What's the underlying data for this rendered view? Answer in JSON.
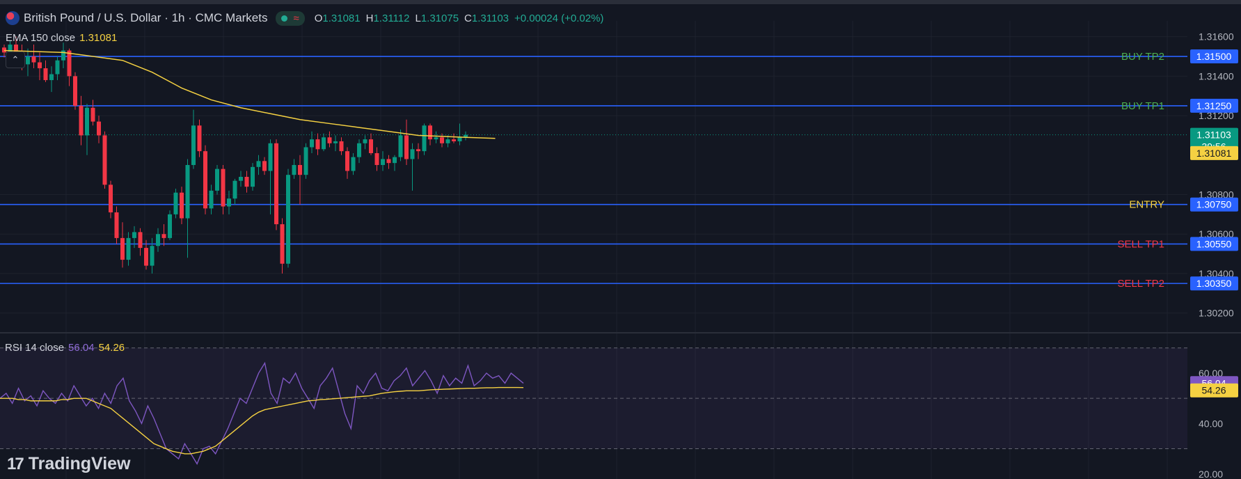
{
  "header": {
    "title": "British Pound / U.S. Dollar · 1h · CMC Markets",
    "wave_symbol": "≈",
    "ohlc": [
      {
        "key": "O",
        "value": "1.31081"
      },
      {
        "key": "H",
        "value": "1.31112"
      },
      {
        "key": "L",
        "value": "1.31075"
      },
      {
        "key": "C",
        "value": "1.31103"
      }
    ],
    "change": "+0.00024 (+0.02%)"
  },
  "ema_legend": {
    "label": "EMA 150 close",
    "value": "1.31081"
  },
  "rsi_legend": {
    "label": "RSI 14 close",
    "value_rsi": "56.04",
    "value_ma": "54.26"
  },
  "collapse_symbol": "⌃",
  "logo": {
    "mark": "17",
    "text": "TradingView"
  },
  "colors": {
    "background": "#131722",
    "grid": "#1e222d",
    "level_line": "#2962ff",
    "up": "#089981",
    "down": "#f23645",
    "ema": "#f5d142",
    "rsi": "#7e57c2",
    "buy_label": "#4caf50",
    "sell_label": "#f23645",
    "entry_label": "#f5d142"
  },
  "chart_data": [
    {
      "type": "candlestick",
      "instrument": "British Pound / U.S. Dollar",
      "timeframe": "1h",
      "ylim": [
        1.301,
        1.3168
      ],
      "yticks": [
        "1.31600",
        "1.31400",
        "1.31200",
        "1.30800",
        "1.30600",
        "1.30400",
        "1.30200"
      ],
      "ytick_values": [
        1.316,
        1.314,
        1.312,
        1.308,
        1.306,
        1.304,
        1.302
      ],
      "levels": [
        {
          "label": "BUY TP2",
          "price": 1.315,
          "price_label": "1.31500",
          "kind": "buy"
        },
        {
          "label": "BUY TP1",
          "price": 1.3125,
          "price_label": "1.31250",
          "kind": "buy"
        },
        {
          "label": "ENTRY",
          "price": 1.3075,
          "price_label": "1.30750",
          "kind": "entry"
        },
        {
          "label": "SELL TP1",
          "price": 1.3055,
          "price_label": "1.30550",
          "kind": "sell"
        },
        {
          "label": "SELL TP2",
          "price": 1.3035,
          "price_label": "1.30350",
          "kind": "sell"
        }
      ],
      "last_price": {
        "price": 1.31103,
        "label": "1.31103",
        "countdown": "39:56"
      },
      "ema": {
        "name": "EMA 150 close",
        "last": 1.31081,
        "label": "1.31081",
        "points": [
          [
            0,
            1.3153
          ],
          [
            10,
            1.3152
          ],
          [
            20,
            1.3148
          ],
          [
            25,
            1.3142
          ],
          [
            30,
            1.3134
          ],
          [
            35,
            1.3128
          ],
          [
            40,
            1.3124
          ],
          [
            45,
            1.3121
          ],
          [
            50,
            1.3118
          ],
          [
            55,
            1.3116
          ],
          [
            60,
            1.3114
          ],
          [
            65,
            1.3112
          ],
          [
            70,
            1.311
          ],
          [
            78,
            1.3109
          ],
          [
            83,
            1.31085
          ]
        ]
      },
      "candles": [
        [
          1.31545,
          1.3156,
          1.31495,
          1.3152
        ],
        [
          1.3152,
          1.3158,
          1.3148,
          1.3156
        ],
        [
          1.3156,
          1.316,
          1.315,
          1.3151
        ],
        [
          1.3151,
          1.3156,
          1.3143,
          1.3146
        ],
        [
          1.3146,
          1.3154,
          1.314,
          1.315
        ],
        [
          1.315,
          1.3156,
          1.3144,
          1.3147
        ],
        [
          1.3147,
          1.3152,
          1.3138,
          1.3144
        ],
        [
          1.3144,
          1.3148,
          1.3137,
          1.3138
        ],
        [
          1.3138,
          1.3145,
          1.3132,
          1.3141
        ],
        [
          1.3141,
          1.315,
          1.3138,
          1.3148
        ],
        [
          1.3148,
          1.3157,
          1.3144,
          1.3153
        ],
        [
          1.3153,
          1.3154,
          1.3135,
          1.314
        ],
        [
          1.314,
          1.3142,
          1.3123,
          1.3125
        ],
        [
          1.3125,
          1.313,
          1.3105,
          1.311
        ],
        [
          1.311,
          1.3126,
          1.31,
          1.3124
        ],
        [
          1.3124,
          1.3128,
          1.3115,
          1.3117
        ],
        [
          1.3117,
          1.312,
          1.3106,
          1.311
        ],
        [
          1.311,
          1.3112,
          1.3083,
          1.3085
        ],
        [
          1.3085,
          1.3087,
          1.3068,
          1.3071
        ],
        [
          1.3071,
          1.3074,
          1.3055,
          1.3058
        ],
        [
          1.3058,
          1.3066,
          1.3043,
          1.3047
        ],
        [
          1.3047,
          1.3061,
          1.3044,
          1.3058
        ],
        [
          1.3058,
          1.3064,
          1.3053,
          1.3061
        ],
        [
          1.3061,
          1.3063,
          1.3049,
          1.3053
        ],
        [
          1.3053,
          1.3057,
          1.3042,
          1.3044
        ],
        [
          1.3044,
          1.3058,
          1.304,
          1.3054
        ],
        [
          1.3054,
          1.3063,
          1.3051,
          1.306
        ],
        [
          1.306,
          1.3065,
          1.3054,
          1.3058
        ],
        [
          1.3058,
          1.3072,
          1.3057,
          1.307
        ],
        [
          1.307,
          1.3083,
          1.3068,
          1.3081
        ],
        [
          1.3081,
          1.3084,
          1.3065,
          1.3068
        ],
        [
          1.3068,
          1.3098,
          1.3048,
          1.3095
        ],
        [
          1.3095,
          1.3123,
          1.3093,
          1.3115
        ],
        [
          1.3115,
          1.3118,
          1.3099,
          1.3102
        ],
        [
          1.3102,
          1.3105,
          1.307,
          1.3073
        ],
        [
          1.3073,
          1.3085,
          1.307,
          1.3082
        ],
        [
          1.3082,
          1.3095,
          1.308,
          1.3093
        ],
        [
          1.3093,
          1.3095,
          1.307,
          1.3074
        ],
        [
          1.3074,
          1.3082,
          1.307,
          1.3078
        ],
        [
          1.3078,
          1.3088,
          1.3075,
          1.3087
        ],
        [
          1.3087,
          1.3092,
          1.3084,
          1.3089
        ],
        [
          1.3089,
          1.3092,
          1.3081,
          1.3084
        ],
        [
          1.3084,
          1.3096,
          1.3082,
          1.3094
        ],
        [
          1.3094,
          1.31,
          1.309,
          1.3097
        ],
        [
          1.3097,
          1.3099,
          1.309,
          1.3092
        ],
        [
          1.3092,
          1.3108,
          1.307,
          1.3106
        ],
        [
          1.3106,
          1.3108,
          1.3062,
          1.3065
        ],
        [
          1.3065,
          1.3068,
          1.304,
          1.3045
        ],
        [
          1.3045,
          1.3093,
          1.3043,
          1.309
        ],
        [
          1.309,
          1.3098,
          1.3088,
          1.3095
        ],
        [
          1.3095,
          1.31,
          1.3075,
          1.309
        ],
        [
          1.309,
          1.3106,
          1.3088,
          1.3104
        ],
        [
          1.3104,
          1.3112,
          1.3101,
          1.3108
        ],
        [
          1.3108,
          1.3111,
          1.31,
          1.3103
        ],
        [
          1.3103,
          1.3111,
          1.3102,
          1.3109
        ],
        [
          1.3109,
          1.3112,
          1.3104,
          1.3106
        ],
        [
          1.3106,
          1.311,
          1.3102,
          1.3107
        ],
        [
          1.3107,
          1.3109,
          1.31,
          1.3102
        ],
        [
          1.3102,
          1.3104,
          1.3088,
          1.3092
        ],
        [
          1.3092,
          1.3101,
          1.309,
          1.3099
        ],
        [
          1.3099,
          1.3108,
          1.3096,
          1.3106
        ],
        [
          1.3106,
          1.311,
          1.3103,
          1.3108
        ],
        [
          1.3108,
          1.3111,
          1.31,
          1.3101
        ],
        [
          1.3101,
          1.3104,
          1.3092,
          1.3095
        ],
        [
          1.3095,
          1.3102,
          1.3092,
          1.3098
        ],
        [
          1.3098,
          1.31,
          1.3093,
          1.3096
        ],
        [
          1.3096,
          1.31,
          1.3092,
          1.3099
        ],
        [
          1.3099,
          1.3113,
          1.3097,
          1.311
        ],
        [
          1.311,
          1.3118,
          1.3095,
          1.3098
        ],
        [
          1.3098,
          1.3106,
          1.3082,
          1.3103
        ],
        [
          1.3103,
          1.3106,
          1.3098,
          1.3102
        ],
        [
          1.3102,
          1.3116,
          1.31,
          1.3115
        ],
        [
          1.3115,
          1.3116,
          1.3105,
          1.3108
        ],
        [
          1.3108,
          1.3112,
          1.3106,
          1.3109
        ],
        [
          1.3109,
          1.3111,
          1.3104,
          1.3106
        ],
        [
          1.3106,
          1.311,
          1.3104,
          1.3108
        ],
        [
          1.3108,
          1.3111,
          1.3106,
          1.3107
        ],
        [
          1.3107,
          1.3116,
          1.3105,
          1.3109
        ],
        [
          1.3109,
          1.3112,
          1.31075,
          1.31103
        ]
      ]
    },
    {
      "type": "line",
      "name": "RSI 14 close",
      "ylim": [
        18,
        76
      ],
      "yticks": [
        "60.00",
        "40.00",
        "20.00"
      ],
      "ytick_values": [
        60,
        40,
        20
      ],
      "bands": [
        70,
        50,
        30
      ],
      "series": [
        {
          "name": "RSI",
          "last": 56.04,
          "label": "56.04",
          "values": [
            50,
            52,
            48,
            54,
            49,
            51,
            47,
            53,
            50,
            48,
            52,
            49,
            55,
            51,
            47,
            50,
            46,
            52,
            48,
            55,
            58,
            49,
            45,
            40,
            47,
            42,
            36,
            30,
            28,
            26,
            32,
            28,
            24,
            30,
            31,
            28,
            33,
            38,
            44,
            50,
            48,
            54,
            60,
            64,
            52,
            48,
            58,
            56,
            60,
            54,
            50,
            46,
            55,
            58,
            62,
            53,
            44,
            38,
            55,
            52,
            57,
            60,
            54,
            53,
            57,
            59,
            62,
            55,
            58,
            61,
            57,
            52,
            59,
            55,
            58,
            56,
            63,
            55,
            57,
            60,
            58,
            59,
            56,
            60,
            58,
            56
          ]
        },
        {
          "name": "MA",
          "last": 54.26,
          "label": "54.26",
          "values": [
            50,
            50,
            50,
            49.5,
            49.5,
            49,
            49,
            49,
            49,
            49,
            49.5,
            49.5,
            50,
            50,
            50,
            49,
            48,
            47,
            46,
            44,
            42,
            40,
            38,
            36,
            34,
            32,
            31,
            30,
            29,
            28.5,
            28,
            28,
            28.5,
            29,
            30,
            31,
            33,
            35,
            37,
            39,
            41,
            43,
            44.5,
            45.5,
            46,
            46.5,
            47,
            47.5,
            48,
            48.5,
            49,
            49.2,
            49.5,
            49.6,
            49.8,
            50,
            50.2,
            50.4,
            50.6,
            50.8,
            51,
            51.5,
            52,
            52.3,
            52.6,
            52.8,
            53,
            53,
            53,
            53.2,
            53.4,
            53.5,
            53.6,
            53.7,
            53.8,
            53.9,
            54,
            54,
            54.1,
            54.2,
            54.2,
            54.3,
            54.3,
            54.3,
            54.3,
            54.26
          ]
        }
      ]
    }
  ]
}
